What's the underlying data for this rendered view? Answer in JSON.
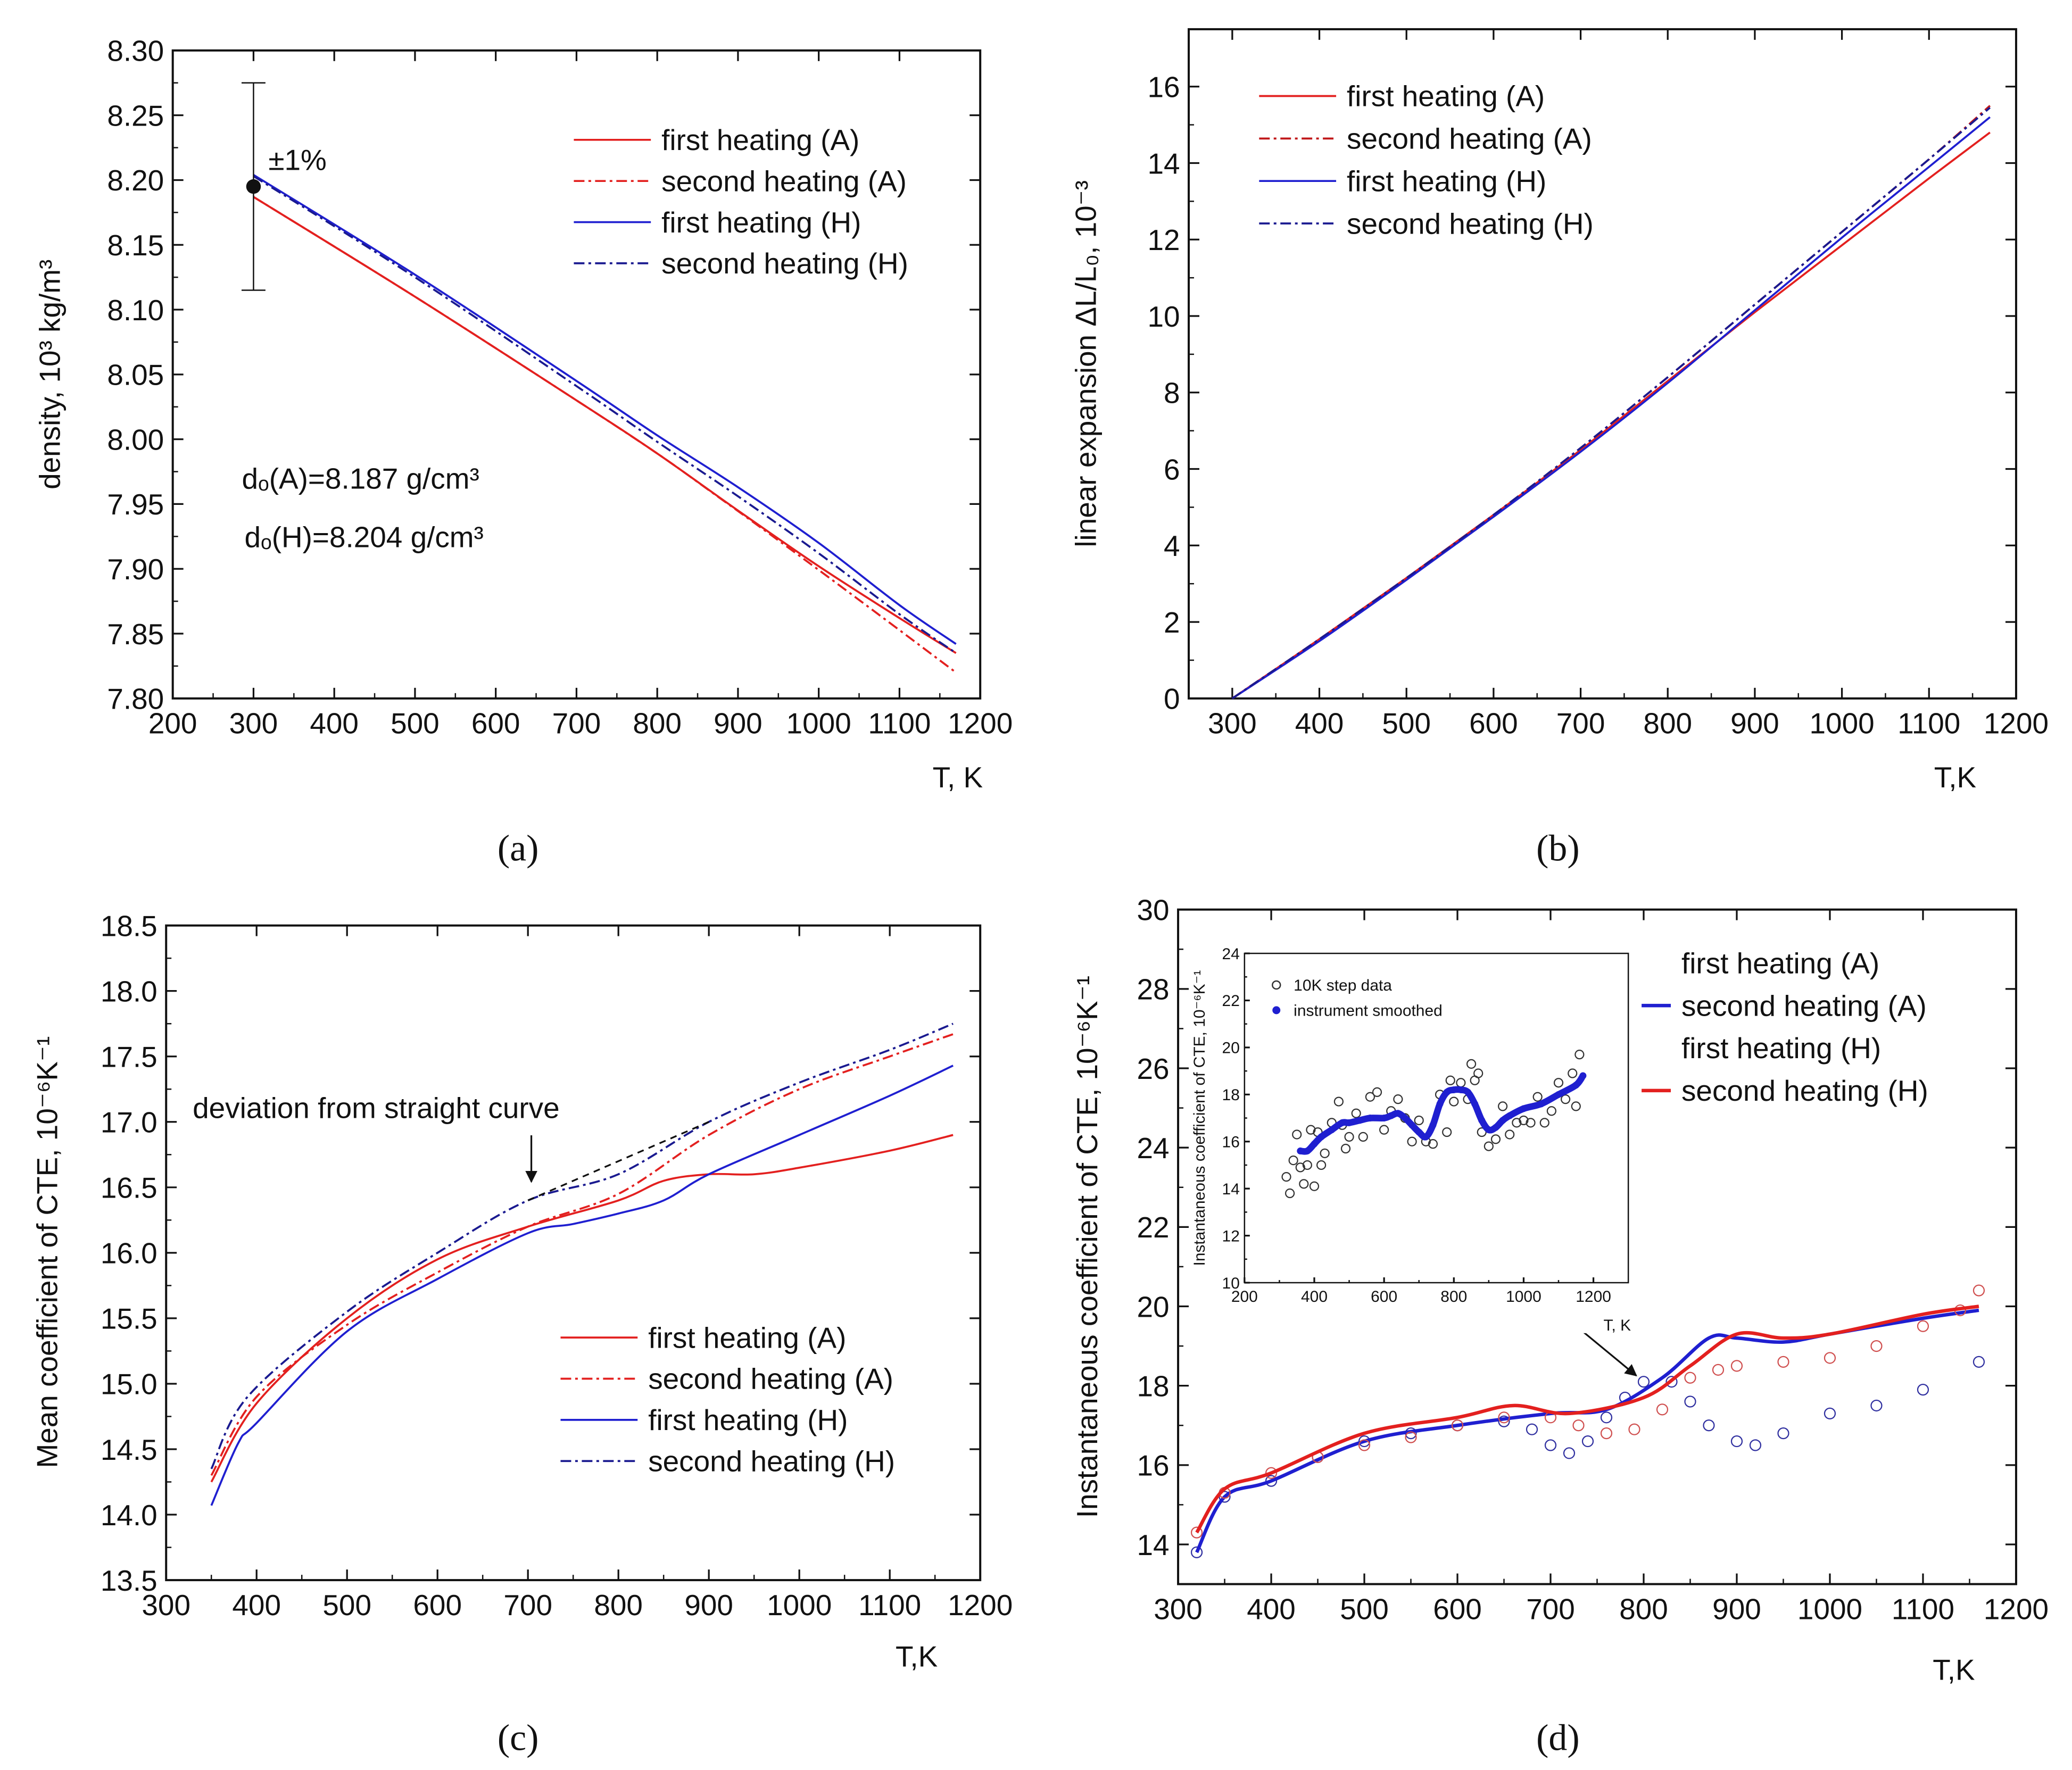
{
  "chart_data": [
    {
      "id": "a",
      "type": "line",
      "caption": "(a)",
      "xlabel": "T, K",
      "ylabel": "density, 10³ kg/m³",
      "xlim": [
        200,
        1200
      ],
      "ylim": [
        7.8,
        8.3
      ],
      "xticks": [
        "200",
        "300",
        "400",
        "500",
        "600",
        "700",
        "800",
        "900",
        "1000",
        "1100",
        "1200"
      ],
      "yticks": [
        "7.80",
        "7.85",
        "7.90",
        "7.95",
        "8.00",
        "8.05",
        "8.10",
        "8.15",
        "8.20",
        "8.25",
        "8.30"
      ],
      "annotations": {
        "error_label": "±1%",
        "d0_A": "dₒ(A)=8.187 g/cm³",
        "d0_H": "dₒ(H)=8.204 g/cm³"
      },
      "error_bar": {
        "x": 300,
        "y": 8.195,
        "low": 8.115,
        "high": 8.275
      },
      "series": [
        {
          "name": "first heating  (A)",
          "color": "#e3201f",
          "style": "solid",
          "x": [
            300,
            500,
            700,
            800,
            900,
            1000,
            1100,
            1170
          ],
          "y": [
            8.187,
            8.11,
            8.03,
            7.989,
            7.945,
            7.902,
            7.862,
            7.835
          ]
        },
        {
          "name": "second heating (A)",
          "color": "#e3201f",
          "style": "dashdot",
          "x": [
            300,
            500,
            700,
            800,
            870,
            950,
            1050,
            1170
          ],
          "y": [
            8.187,
            8.11,
            8.03,
            7.989,
            7.958,
            7.922,
            7.876,
            7.82
          ]
        },
        {
          "name": "first heating  (H)",
          "color": "#1f1fd0",
          "style": "solid",
          "x": [
            300,
            500,
            700,
            800,
            900,
            1000,
            1100,
            1170
          ],
          "y": [
            8.204,
            8.127,
            8.045,
            8.003,
            7.963,
            7.92,
            7.872,
            7.842
          ]
        },
        {
          "name": "second heating (H)",
          "color": "#1a1a90",
          "style": "dashdot",
          "x": [
            300,
            500,
            700,
            800,
            900,
            1000,
            1100,
            1170
          ],
          "y": [
            8.203,
            8.125,
            8.041,
            7.998,
            7.956,
            7.912,
            7.865,
            7.835
          ]
        }
      ]
    },
    {
      "id": "b",
      "type": "line",
      "caption": "(b)",
      "xlabel": "T,K",
      "ylabel": "linear expansion ΔL/L₀, 10⁻³",
      "xlim": [
        250,
        1200
      ],
      "ylim": [
        0,
        17.5
      ],
      "xticks": [
        "300",
        "400",
        "500",
        "600",
        "700",
        "800",
        "900",
        "1000",
        "1100",
        "1200"
      ],
      "yticks": [
        "0",
        "2",
        "4",
        "6",
        "8",
        "10",
        "12",
        "14",
        "16"
      ],
      "series": [
        {
          "name": "first heating (A)",
          "color": "#e3201f",
          "style": "solid",
          "x": [
            300,
            400,
            500,
            600,
            700,
            800,
            900,
            1000,
            1100,
            1170
          ],
          "y": [
            0,
            1.55,
            3.15,
            4.8,
            6.5,
            8.3,
            10.1,
            11.85,
            13.6,
            14.8
          ]
        },
        {
          "name": "second heating (A)",
          "color": "#c0181a",
          "style": "dashdot",
          "x": [
            300,
            400,
            500,
            600,
            700,
            800,
            900,
            1000,
            1100,
            1170
          ],
          "y": [
            0,
            1.55,
            3.15,
            4.8,
            6.55,
            8.4,
            10.3,
            12.2,
            14.1,
            15.5
          ]
        },
        {
          "name": "first heating (H)",
          "color": "#1f1fd0",
          "style": "solid",
          "x": [
            300,
            400,
            500,
            600,
            700,
            800,
            900,
            1000,
            1100,
            1170
          ],
          "y": [
            0,
            1.5,
            3.1,
            4.75,
            6.45,
            8.25,
            10.15,
            12.05,
            13.9,
            15.2
          ]
        },
        {
          "name": "second heating (H)",
          "color": "#1a1a90",
          "style": "dashdot",
          "x": [
            300,
            400,
            500,
            600,
            700,
            800,
            900,
            1000,
            1100,
            1170
          ],
          "y": [
            0,
            1.55,
            3.15,
            4.8,
            6.55,
            8.4,
            10.3,
            12.2,
            14.1,
            15.45
          ]
        }
      ]
    },
    {
      "id": "c",
      "type": "line",
      "caption": "(c)",
      "xlabel": "T,K",
      "ylabel": "Mean coefficient of CTE, 10⁻⁶K⁻¹",
      "xlim": [
        300,
        1200
      ],
      "ylim": [
        13.5,
        18.5
      ],
      "xticks": [
        "300",
        "400",
        "500",
        "600",
        "700",
        "800",
        "900",
        "1000",
        "1100",
        "1200"
      ],
      "yticks": [
        "13.5",
        "14.0",
        "14.5",
        "15.0",
        "15.5",
        "16.0",
        "16.5",
        "17.0",
        "17.5",
        "18.0",
        "18.5"
      ],
      "annotations": {
        "deviation": "deviation from straight curve"
      },
      "straight_reference": {
        "x": [
          700,
          900
        ],
        "y": [
          16.4,
          17.0
        ]
      },
      "series": [
        {
          "name": "first heating  (A)",
          "color": "#e3201f",
          "style": "solid",
          "x": [
            350,
            400,
            500,
            600,
            700,
            800,
            850,
            900,
            950,
            1000,
            1100,
            1170
          ],
          "y": [
            14.25,
            14.85,
            15.5,
            15.95,
            16.2,
            16.4,
            16.55,
            16.6,
            16.6,
            16.65,
            16.78,
            16.9
          ]
        },
        {
          "name": "second heating  (A)",
          "color": "#e3201f",
          "style": "dashdot",
          "x": [
            350,
            400,
            500,
            600,
            700,
            800,
            900,
            1000,
            1100,
            1170
          ],
          "y": [
            14.3,
            14.9,
            15.45,
            15.85,
            16.2,
            16.45,
            16.9,
            17.25,
            17.5,
            17.67
          ]
        },
        {
          "name": "first heating  (H)",
          "color": "#1f1fd0",
          "style": "solid",
          "x": [
            350,
            380,
            400,
            500,
            600,
            700,
            750,
            800,
            850,
            900,
            1000,
            1100,
            1170
          ],
          "y": [
            14.07,
            14.55,
            14.7,
            15.4,
            15.8,
            16.15,
            16.22,
            16.3,
            16.4,
            16.6,
            16.9,
            17.2,
            17.43
          ]
        },
        {
          "name": "second heating  (H)",
          "color": "#1a1a90",
          "style": "dashdot",
          "x": [
            350,
            390,
            500,
            600,
            700,
            800,
            900,
            1000,
            1100,
            1170
          ],
          "y": [
            14.35,
            14.9,
            15.55,
            16.0,
            16.4,
            16.6,
            17.0,
            17.3,
            17.55,
            17.75
          ]
        }
      ]
    },
    {
      "id": "d",
      "type": "line",
      "caption": "(d)",
      "xlabel": "T,K",
      "ylabel": "Instantaneous coefficient of CTE, 10⁻⁶K⁻¹",
      "xlim": [
        300,
        1200
      ],
      "ylim": [
        13,
        30
      ],
      "xticks": [
        "300",
        "400",
        "500",
        "600",
        "700",
        "800",
        "900",
        "1000",
        "1100",
        "1200"
      ],
      "yticks": [
        "14",
        "16",
        "18",
        "20",
        "22",
        "24",
        "26",
        "28",
        "30"
      ],
      "series": [
        {
          "name": "first heating (A)",
          "color": "#3030a0",
          "style": "circles",
          "x": [
            320,
            350,
            400,
            450,
            500,
            550,
            600,
            650,
            680,
            700,
            720,
            740,
            760,
            780,
            800,
            830,
            850,
            870,
            900,
            920,
            950,
            1000,
            1050,
            1100,
            1160
          ],
          "y": [
            13.8,
            15.2,
            15.6,
            16.2,
            16.6,
            16.8,
            17.0,
            17.1,
            16.9,
            16.5,
            16.3,
            16.6,
            17.2,
            17.7,
            18.1,
            18.1,
            17.6,
            17.0,
            16.6,
            16.5,
            16.8,
            17.3,
            17.5,
            17.9,
            18.6
          ]
        },
        {
          "name": "second heating (A)",
          "color": "#1f1fd0",
          "style": "solid",
          "x": [
            320,
            350,
            400,
            500,
            600,
            700,
            760,
            820,
            870,
            900,
            950,
            1000,
            1100,
            1160
          ],
          "y": [
            13.8,
            15.2,
            15.6,
            16.6,
            17.0,
            17.3,
            17.4,
            18.2,
            19.2,
            19.2,
            19.1,
            19.3,
            19.7,
            19.9
          ]
        },
        {
          "name": "first heating (H)",
          "color": "#d05050",
          "style": "circles",
          "x": [
            320,
            350,
            400,
            450,
            500,
            550,
            600,
            650,
            700,
            730,
            760,
            790,
            820,
            850,
            880,
            900,
            950,
            1000,
            1050,
            1100,
            1140,
            1160
          ],
          "y": [
            14.3,
            15.3,
            15.8,
            16.2,
            16.5,
            16.7,
            17.0,
            17.2,
            17.2,
            17.0,
            16.8,
            16.9,
            17.4,
            18.2,
            18.4,
            18.5,
            18.6,
            18.7,
            19.0,
            19.5,
            19.9,
            20.4
          ]
        },
        {
          "name": "second heating (H)",
          "color": "#e3201f",
          "style": "solid",
          "x": [
            320,
            350,
            400,
            500,
            600,
            660,
            720,
            800,
            850,
            900,
            950,
            1000,
            1100,
            1160
          ],
          "y": [
            14.3,
            15.4,
            15.8,
            16.8,
            17.2,
            17.5,
            17.3,
            17.7,
            18.5,
            19.3,
            19.2,
            19.3,
            19.8,
            20.0
          ]
        }
      ]
    },
    {
      "id": "inset",
      "type": "scatter",
      "xlabel": "T, K",
      "ylabel": "Instantaneous coefficient of CTE, 10⁻⁶K⁻¹",
      "xlim": [
        200,
        1300
      ],
      "ylim": [
        10,
        24
      ],
      "xticks": [
        "200",
        "400",
        "600",
        "800",
        "1000",
        "1200"
      ],
      "yticks": [
        "10",
        "12",
        "14",
        "16",
        "18",
        "20",
        "22",
        "24"
      ],
      "series": [
        {
          "name": "10K step data",
          "color": "#333333",
          "style": "circles",
          "x": [
            320,
            330,
            340,
            350,
            360,
            370,
            380,
            390,
            400,
            410,
            420,
            430,
            450,
            470,
            480,
            490,
            500,
            520,
            540,
            560,
            580,
            600,
            620,
            640,
            660,
            680,
            700,
            720,
            740,
            760,
            780,
            790,
            800,
            820,
            840,
            850,
            860,
            870,
            880,
            900,
            920,
            940,
            960,
            980,
            1000,
            1020,
            1040,
            1060,
            1080,
            1100,
            1120,
            1140,
            1150,
            1160
          ],
          "y": [
            14.5,
            13.8,
            15.2,
            16.3,
            14.9,
            14.2,
            15.0,
            16.5,
            14.1,
            16.4,
            15.0,
            15.5,
            16.8,
            17.7,
            16.7,
            15.7,
            16.2,
            17.2,
            16.2,
            17.9,
            18.1,
            16.5,
            17.3,
            17.8,
            17.0,
            16.0,
            16.9,
            16.0,
            15.9,
            18.0,
            16.4,
            18.6,
            17.7,
            18.5,
            17.8,
            19.3,
            18.6,
            18.9,
            16.4,
            15.8,
            16.1,
            17.5,
            16.3,
            16.8,
            16.9,
            16.8,
            17.9,
            16.8,
            17.3,
            18.5,
            17.8,
            18.9,
            17.5,
            19.7
          ]
        },
        {
          "name": "instrument smoothed",
          "color": "#1f1fd0",
          "style": "dots",
          "x": [
            360,
            380,
            400,
            420,
            450,
            480,
            500,
            530,
            560,
            600,
            620,
            640,
            660,
            680,
            700,
            720,
            740,
            760,
            780,
            800,
            820,
            840,
            860,
            880,
            900,
            920,
            940,
            960,
            1000,
            1050,
            1100,
            1150,
            1170
          ],
          "y": [
            15.6,
            15.6,
            15.9,
            16.2,
            16.5,
            16.8,
            16.8,
            16.9,
            17.0,
            17.0,
            17.1,
            17.2,
            17.0,
            16.7,
            16.4,
            16.2,
            16.7,
            17.6,
            18.1,
            18.2,
            18.2,
            18.1,
            17.6,
            16.9,
            16.5,
            16.6,
            16.9,
            17.1,
            17.4,
            17.6,
            18.0,
            18.4,
            18.8
          ]
        }
      ]
    }
  ]
}
